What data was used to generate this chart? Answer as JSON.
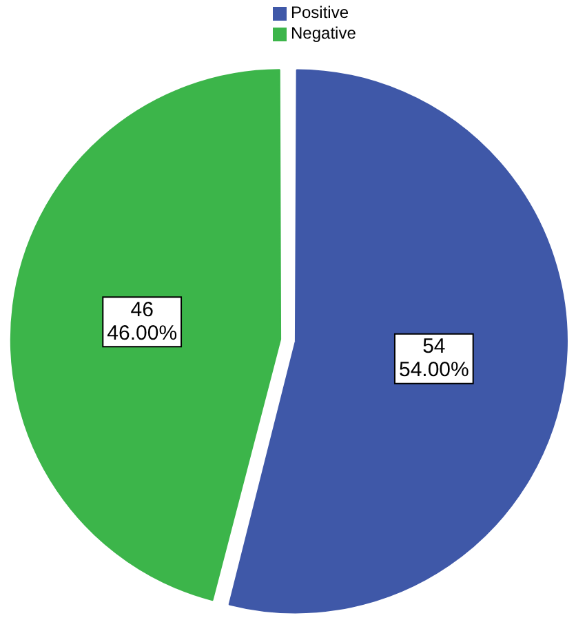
{
  "chart_data": {
    "type": "pie",
    "categories": [
      "Positive",
      "Negative"
    ],
    "values": [
      54,
      46
    ],
    "colors": [
      "#3f58a8",
      "#3cb54a"
    ],
    "value_labels": [
      "54\n54.00%",
      "46\n46.00%"
    ],
    "legend": "top"
  }
}
